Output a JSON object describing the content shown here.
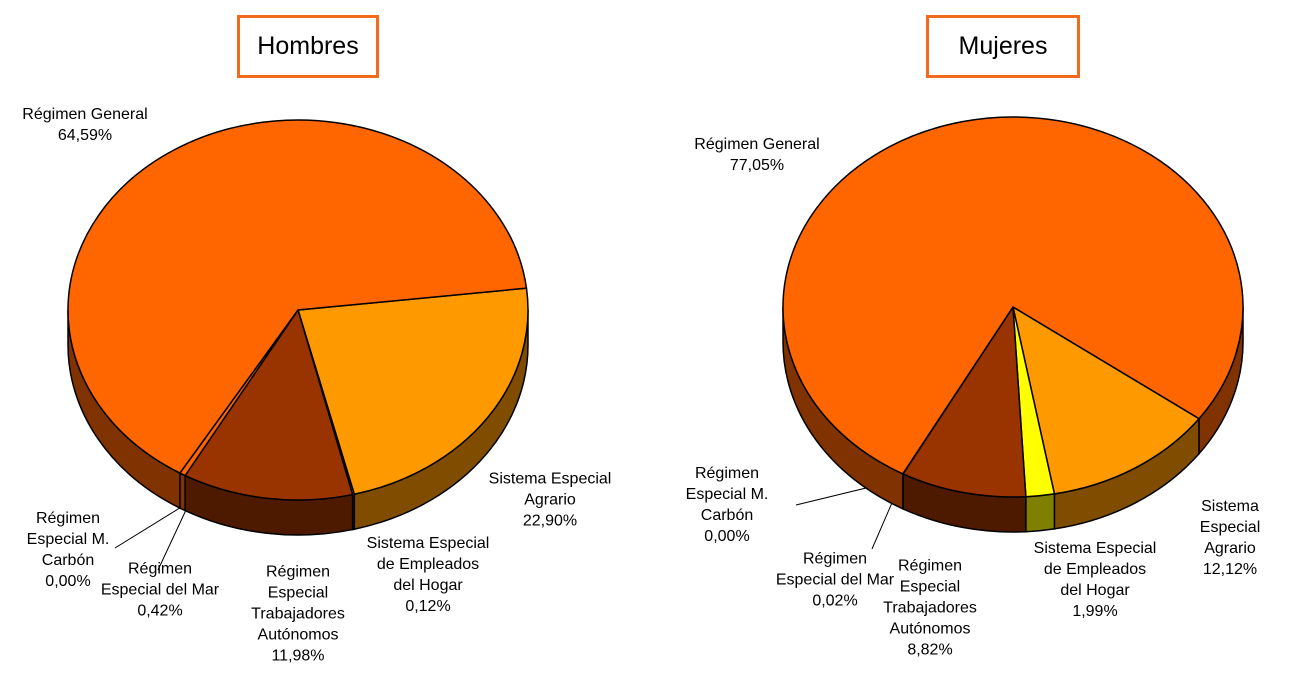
{
  "chart_data": [
    {
      "type": "pie3d",
      "title": "Hombres",
      "categories": [
        "Régimen General",
        "Sistema Especial\nAgrario",
        "Sistema Especial\nde Empleados\ndel Hogar",
        "Régimen\nEspecial\nTrabajadores\nAutónomos",
        "Régimen\nEspecial del Mar",
        "Régimen\nEspecial M.\nCarbón"
      ],
      "values": [
        64.59,
        22.9,
        0.12,
        11.98,
        0.42,
        0.0
      ],
      "value_labels": [
        "64,59%",
        "22,90%",
        "0,12%",
        "11,98%",
        "0,42%",
        "0,00%"
      ],
      "colors": [
        "#ff6600",
        "#ff9900",
        "#ffff00",
        "#993300",
        "#ff6600",
        "#cc3300"
      ]
    },
    {
      "type": "pie3d",
      "title": "Mujeres",
      "categories": [
        "Régimen General",
        "Sistema Especial\nAgrario",
        "Sistema Especial\nde Empleados\ndel Hogar",
        "Régimen\nEspecial\nTrabajadores\nAutónomos",
        "Régimen\nEspecial del Mar",
        "Régimen\nEspecial M.\nCarbón"
      ],
      "values": [
        77.05,
        12.12,
        1.99,
        8.82,
        0.02,
        0.0
      ],
      "value_labels": [
        "77,05%",
        "12,12%",
        "1,99%",
        "8,82%",
        "0,02%",
        "0,00%"
      ],
      "colors": [
        "#ff6600",
        "#ff9900",
        "#ffff00",
        "#993300",
        "#ff6600",
        "#cc3300"
      ]
    }
  ]
}
